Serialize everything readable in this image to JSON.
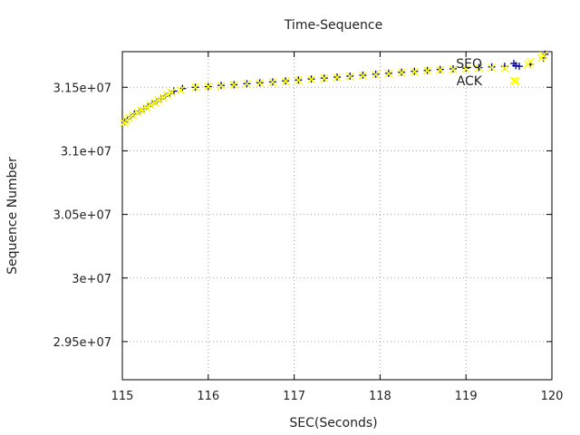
{
  "chart_data": {
    "type": "scatter",
    "title": "Time-Sequence",
    "xlabel": "SEC(Seconds)",
    "ylabel": "Sequence Number",
    "xlim": [
      115,
      120
    ],
    "ylim": [
      29200000,
      31780000
    ],
    "xticks": [
      115,
      116,
      117,
      118,
      119,
      120
    ],
    "xtick_labels": [
      "115",
      "116",
      "117",
      "118",
      "119",
      "120"
    ],
    "yticks": [
      29500000,
      30000000,
      30500000,
      31000000,
      31500000
    ],
    "ytick_labels": [
      "2.95e+07",
      "3e+07",
      "3.05e+07",
      "3.1e+07",
      "3.15e+07"
    ],
    "grid": true,
    "legend_position": "top-right",
    "series": [
      {
        "name": "SEQ",
        "color": "#00008b",
        "marker": "plus",
        "x": [
          115.03,
          115.06,
          115.1,
          115.14,
          115.2,
          115.25,
          115.3,
          115.35,
          115.4,
          115.45,
          115.5,
          115.55,
          115.6,
          115.7,
          115.85,
          116.0,
          116.15,
          116.3,
          116.45,
          116.6,
          116.75,
          116.9,
          117.05,
          117.2,
          117.35,
          117.5,
          117.65,
          117.8,
          117.95,
          118.1,
          118.25,
          118.4,
          118.55,
          118.7,
          118.85,
          119.0,
          119.15,
          119.3,
          119.45,
          119.58,
          119.62,
          119.75,
          119.9,
          119.92
        ],
        "y": [
          31230000,
          31250000,
          31270000,
          31290000,
          31310000,
          31330000,
          31350000,
          31370000,
          31390000,
          31410000,
          31430000,
          31450000,
          31470000,
          31490000,
          31500000,
          31505000,
          31515000,
          31520000,
          31528000,
          31535000,
          31542000,
          31550000,
          31557000,
          31565000,
          31572000,
          31580000,
          31588000,
          31595000,
          31603000,
          31610000,
          31618000,
          31625000,
          31632000,
          31640000,
          31645000,
          31650000,
          31655000,
          31660000,
          31665000,
          31670000,
          31665000,
          31680000,
          31730000,
          31760000
        ]
      },
      {
        "name": "ACK",
        "color": "#ffff00",
        "marker": "cross",
        "x": [
          115.02,
          115.05,
          115.08,
          115.12,
          115.18,
          115.22,
          115.28,
          115.33,
          115.38,
          115.42,
          115.48,
          115.52,
          115.57,
          115.68,
          115.85,
          116.0,
          116.15,
          116.3,
          116.45,
          116.6,
          116.75,
          116.9,
          117.05,
          117.2,
          117.35,
          117.5,
          117.65,
          117.8,
          117.95,
          118.1,
          118.25,
          118.4,
          118.55,
          118.7,
          118.85,
          119.0,
          119.15,
          119.3,
          119.45,
          119.58,
          119.72,
          119.75,
          119.88,
          119.9
        ],
        "y": [
          31220000,
          31240000,
          31260000,
          31280000,
          31300000,
          31320000,
          31340000,
          31360000,
          31380000,
          31400000,
          31420000,
          31440000,
          31460000,
          31480000,
          31500000,
          31505000,
          31512000,
          31520000,
          31527000,
          31533000,
          31540000,
          31547000,
          31555000,
          31562000,
          31570000,
          31578000,
          31585000,
          31592000,
          31600000,
          31608000,
          31615000,
          31622000,
          31630000,
          31637000,
          31640000,
          31645000,
          31650000,
          31655000,
          31650000,
          31550000,
          31680000,
          31700000,
          31730000,
          31750000
        ]
      }
    ]
  }
}
